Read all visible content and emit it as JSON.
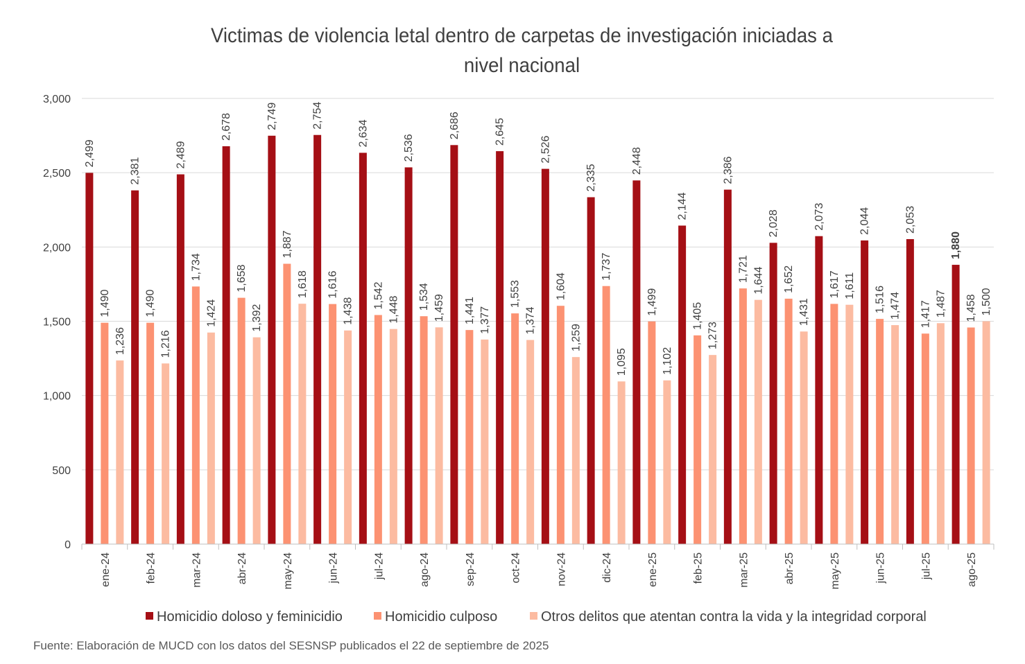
{
  "title": "Victimas de violencia letal dentro de carpetas de investigación iniciadas a nivel nacional",
  "source": "Fuente: Elaboración de MUCD con los datos del SESNSP publicados el 22 de septiembre de 2025",
  "colors": {
    "homicidio_doloso": "#a50f15",
    "homicidio_culposo": "#fc9272",
    "otros_delitos": "#fcbba1",
    "grid": "#d9d9d9",
    "text": "#404040"
  },
  "chart_data": {
    "type": "bar",
    "categories": [
      "ene-24",
      "feb-24",
      "mar-24",
      "abr-24",
      "may-24",
      "jun-24",
      "jul-24",
      "ago-24",
      "sep-24",
      "oct-24",
      "nov-24",
      "dic-24",
      "ene-25",
      "feb-25",
      "mar-25",
      "abr-25",
      "may-25",
      "jun-25",
      "jul-25",
      "ago-25"
    ],
    "series": [
      {
        "name": "Homicidio doloso y feminicidio",
        "values": [
          2499,
          2381,
          2489,
          2678,
          2749,
          2754,
          2634,
          2536,
          2686,
          2645,
          2526,
          2335,
          2448,
          2144,
          2386,
          2028,
          2073,
          2044,
          2053,
          1880
        ],
        "labels": [
          "2,499",
          "2,381",
          "2,489",
          "2,678",
          "2,749",
          "2,754",
          "2,634",
          "2,536",
          "2,686",
          "2,645",
          "2,526",
          "2,335",
          "2,448",
          "2,144",
          "2,386",
          "2,028",
          "2,073",
          "2,044",
          "2,053",
          "1,880"
        ]
      },
      {
        "name": "Homicidio culposo",
        "values": [
          1490,
          1490,
          1734,
          1658,
          1887,
          1616,
          1542,
          1534,
          1441,
          1553,
          1604,
          1737,
          1499,
          1405,
          1721,
          1652,
          1617,
          1516,
          1417,
          1458
        ],
        "labels": [
          "1,490",
          "1,490",
          "1,734",
          "1,658",
          "1,887",
          "1,616",
          "1,542",
          "1,534",
          "1,441",
          "1,553",
          "1,604",
          "1,737",
          "1,499",
          "1,405",
          "1,721",
          "1,652",
          "1,617",
          "1,516",
          "1,417",
          "1,458"
        ]
      },
      {
        "name": "Otros delitos que atentan contra la vida y la integridad corporal",
        "values": [
          1236,
          1216,
          1424,
          1392,
          1618,
          1438,
          1448,
          1459,
          1377,
          1374,
          1259,
          1095,
          1102,
          1273,
          1644,
          1431,
          1611,
          1474,
          1487,
          1500
        ],
        "labels": [
          "1,236",
          "1,216",
          "1,424",
          "1,392",
          "1,618",
          "1,438",
          "1,448",
          "1,459",
          "1,377",
          "1,374",
          "1,259",
          "1,095",
          "1,102",
          "1,273",
          "1,644",
          "1,431",
          "1,611",
          "1,474",
          "1,487",
          "1,500"
        ]
      }
    ],
    "ylim": [
      0,
      3000
    ],
    "yticks": [
      0,
      500,
      1000,
      1500,
      2000,
      2500,
      3000
    ],
    "ytick_labels": [
      "0",
      "500",
      "1,000",
      "1,500",
      "2,000",
      "2,500",
      "3,000"
    ],
    "grid": true,
    "legend_position": "bottom"
  }
}
